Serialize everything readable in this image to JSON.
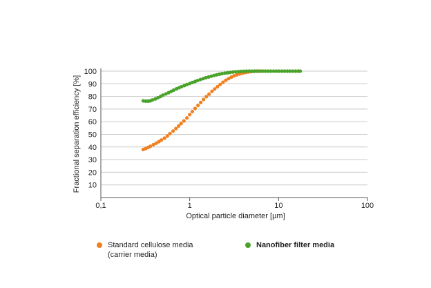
{
  "chart_data": {
    "type": "scatter",
    "title": "",
    "xlabel": "Optical particle diameter [µm]",
    "ylabel": "Fractional separation efficiency [%]",
    "x_scale": "log",
    "xlim": [
      0.1,
      100
    ],
    "ylim": [
      0,
      100
    ],
    "x_ticks": [
      {
        "value": 0.1,
        "label": "0,1"
      },
      {
        "value": 1,
        "label": "1"
      },
      {
        "value": 10,
        "label": "10"
      },
      {
        "value": 100,
        "label": "100"
      }
    ],
    "y_ticks": [
      {
        "value": 10,
        "label": "10"
      },
      {
        "value": 20,
        "label": "20"
      },
      {
        "value": 30,
        "label": "30"
      },
      {
        "value": 40,
        "label": "40"
      },
      {
        "value": 50,
        "label": "50"
      },
      {
        "value": 60,
        "label": "60"
      },
      {
        "value": 70,
        "label": "70"
      },
      {
        "value": 80,
        "label": "80"
      },
      {
        "value": 90,
        "label": "90"
      },
      {
        "value": 100,
        "label": "100"
      }
    ],
    "grid": "horizontal",
    "legend_position": "bottom",
    "series": [
      {
        "name": "Standard cellulose media\n(carrier media)",
        "color": "#f07f1f",
        "x": [
          0.3,
          0.32,
          0.34,
          0.36,
          0.39,
          0.42,
          0.45,
          0.48,
          0.52,
          0.56,
          0.6,
          0.65,
          0.7,
          0.75,
          0.8,
          0.86,
          0.93,
          1.0,
          1.07,
          1.15,
          1.24,
          1.33,
          1.43,
          1.54,
          1.65,
          1.78,
          1.91,
          2.05,
          2.2,
          2.37,
          2.55,
          2.74,
          2.94,
          3.16,
          3.4,
          3.65,
          3.93,
          4.22,
          4.54,
          4.88,
          5.24,
          5.63,
          6.05,
          6.5
        ],
        "y": [
          38,
          38.8,
          39.6,
          40.5,
          41.8,
          43,
          44.2,
          45.5,
          47,
          48.7,
          50.6,
          52.6,
          54.6,
          56.6,
          58.5,
          60.6,
          63,
          65.6,
          68,
          70.5,
          72.9,
          75.2,
          77.6,
          79.8,
          81.8,
          84,
          85.9,
          87.7,
          89.5,
          91.2,
          92.8,
          94.1,
          95.3,
          96.3,
          97.1,
          97.8,
          98.4,
          98.9,
          99.3,
          99.6,
          99.8,
          100,
          100,
          100
        ]
      },
      {
        "name": "Nanofiber filter media",
        "color": "#4aa32b",
        "x": [
          0.3,
          0.32,
          0.34,
          0.36,
          0.38,
          0.41,
          0.44,
          0.47,
          0.5,
          0.54,
          0.58,
          0.62,
          0.66,
          0.71,
          0.76,
          0.81,
          0.87,
          0.93,
          1.0,
          1.07,
          1.15,
          1.23,
          1.32,
          1.42,
          1.52,
          1.63,
          1.75,
          1.88,
          2.01,
          2.16,
          2.31,
          2.48,
          2.66,
          2.85,
          3.06,
          3.28,
          3.52,
          3.78,
          4.05,
          4.35,
          4.66,
          5.0,
          5.37,
          5.76,
          6.18,
          6.63,
          7.11,
          7.63,
          8.19,
          8.79,
          9.43,
          10.1,
          10.9,
          11.7,
          12.5,
          13.4,
          14.4,
          15.5,
          16.6,
          17.5
        ],
        "y": [
          76.5,
          76.3,
          76.3,
          76.5,
          77.2,
          78,
          79,
          80,
          81,
          82,
          83,
          84,
          85,
          86,
          86.9,
          87.7,
          88.6,
          89.4,
          90.2,
          91,
          91.8,
          92.6,
          93.4,
          94.1,
          94.8,
          95.4,
          96,
          96.6,
          97.1,
          97.6,
          98,
          98.4,
          98.7,
          99,
          99.3,
          99.5,
          99.7,
          99.8,
          99.9,
          100,
          100,
          100,
          100,
          100,
          100,
          100,
          100,
          100,
          100,
          100,
          100,
          100,
          100,
          100,
          100,
          100,
          100,
          100,
          100,
          100
        ]
      }
    ]
  }
}
